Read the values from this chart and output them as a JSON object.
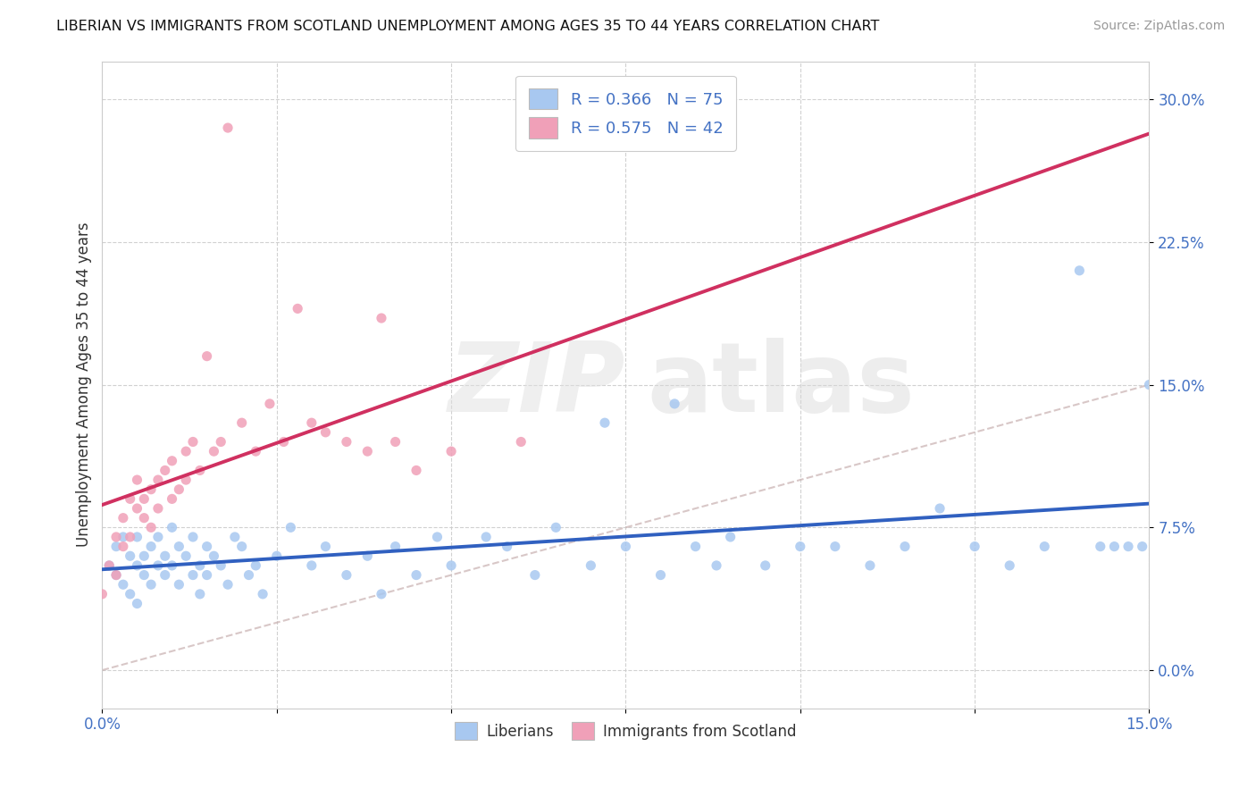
{
  "title": "LIBERIAN VS IMMIGRANTS FROM SCOTLAND UNEMPLOYMENT AMONG AGES 35 TO 44 YEARS CORRELATION CHART",
  "source": "Source: ZipAtlas.com",
  "xlim": [
    0.0,
    0.15
  ],
  "ylim": [
    -0.02,
    0.32
  ],
  "ylabel": "Unemployment Among Ages 35 to 44 years",
  "series1_label": "Liberians",
  "series1_color": "#a8c8f0",
  "series1_R": 0.366,
  "series1_N": 75,
  "series1_line_color": "#3060c0",
  "series2_label": "Immigrants from Scotland",
  "series2_color": "#f0a0b8",
  "series2_R": 0.575,
  "series2_N": 42,
  "series2_line_color": "#d03060",
  "diagonal_color": "#c8b0b0",
  "legend_color": "#4472c4",
  "text_color": "#333333",
  "source_color": "#999999",
  "grid_color": "#cccccc",
  "y_ticks": [
    0.0,
    0.075,
    0.15,
    0.225,
    0.3
  ],
  "y_tick_labels": [
    "0.0%",
    "7.5%",
    "15.0%",
    "22.5%",
    "30.0%"
  ],
  "series1_x": [
    0.001,
    0.002,
    0.002,
    0.003,
    0.003,
    0.004,
    0.004,
    0.005,
    0.005,
    0.005,
    0.006,
    0.006,
    0.007,
    0.007,
    0.008,
    0.008,
    0.009,
    0.009,
    0.01,
    0.01,
    0.011,
    0.011,
    0.012,
    0.013,
    0.013,
    0.014,
    0.014,
    0.015,
    0.015,
    0.016,
    0.017,
    0.018,
    0.019,
    0.02,
    0.021,
    0.022,
    0.023,
    0.025,
    0.027,
    0.03,
    0.032,
    0.035,
    0.038,
    0.04,
    0.042,
    0.045,
    0.048,
    0.05,
    0.055,
    0.058,
    0.062,
    0.065,
    0.07,
    0.072,
    0.075,
    0.08,
    0.082,
    0.085,
    0.088,
    0.09,
    0.095,
    0.1,
    0.105,
    0.11,
    0.115,
    0.12,
    0.125,
    0.13,
    0.135,
    0.14,
    0.143,
    0.145,
    0.147,
    0.149,
    0.15
  ],
  "series1_y": [
    0.055,
    0.05,
    0.065,
    0.045,
    0.07,
    0.06,
    0.04,
    0.055,
    0.07,
    0.035,
    0.06,
    0.05,
    0.045,
    0.065,
    0.055,
    0.07,
    0.05,
    0.06,
    0.055,
    0.075,
    0.045,
    0.065,
    0.06,
    0.05,
    0.07,
    0.055,
    0.04,
    0.065,
    0.05,
    0.06,
    0.055,
    0.045,
    0.07,
    0.065,
    0.05,
    0.055,
    0.04,
    0.06,
    0.075,
    0.055,
    0.065,
    0.05,
    0.06,
    0.04,
    0.065,
    0.05,
    0.07,
    0.055,
    0.07,
    0.065,
    0.05,
    0.075,
    0.055,
    0.13,
    0.065,
    0.05,
    0.14,
    0.065,
    0.055,
    0.07,
    0.055,
    0.065,
    0.065,
    0.055,
    0.065,
    0.085,
    0.065,
    0.055,
    0.065,
    0.21,
    0.065,
    0.065,
    0.065,
    0.065,
    0.15
  ],
  "series2_x": [
    0.0,
    0.001,
    0.002,
    0.002,
    0.003,
    0.003,
    0.004,
    0.004,
    0.005,
    0.005,
    0.006,
    0.006,
    0.007,
    0.007,
    0.008,
    0.008,
    0.009,
    0.01,
    0.01,
    0.011,
    0.012,
    0.012,
    0.013,
    0.014,
    0.015,
    0.016,
    0.017,
    0.018,
    0.02,
    0.022,
    0.024,
    0.026,
    0.028,
    0.03,
    0.032,
    0.035,
    0.038,
    0.04,
    0.042,
    0.045,
    0.05,
    0.06
  ],
  "series2_y": [
    0.04,
    0.055,
    0.07,
    0.05,
    0.08,
    0.065,
    0.09,
    0.07,
    0.085,
    0.1,
    0.09,
    0.08,
    0.095,
    0.075,
    0.1,
    0.085,
    0.105,
    0.09,
    0.11,
    0.095,
    0.115,
    0.1,
    0.12,
    0.105,
    0.165,
    0.115,
    0.12,
    0.285,
    0.13,
    0.115,
    0.14,
    0.12,
    0.19,
    0.13,
    0.125,
    0.12,
    0.115,
    0.185,
    0.12,
    0.105,
    0.115,
    0.12
  ]
}
